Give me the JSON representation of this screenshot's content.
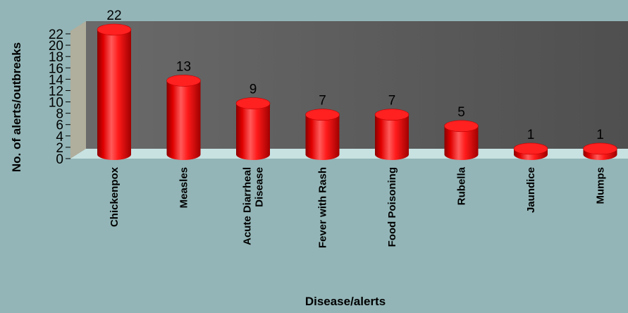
{
  "chart_data": {
    "type": "bar",
    "title": "",
    "xlabel": "Disease/alerts",
    "ylabel": "No. of alerts/outbreaks",
    "categories": [
      "Chickenpox",
      "Measles",
      "Acute Diarrheal Disease",
      "Fever with Rash",
      "Food Poisoning",
      "Rubella",
      "Jaundice",
      "Mumps"
    ],
    "category_lines": [
      [
        "Chickenpox"
      ],
      [
        "Measles"
      ],
      [
        "Acute Diarrheal",
        "Disease"
      ],
      [
        "Fever with Rash"
      ],
      [
        "Food Poisoning"
      ],
      [
        "Rubella"
      ],
      [
        "Jaundice"
      ],
      [
        "Mumps"
      ]
    ],
    "values": [
      22,
      13,
      9,
      7,
      7,
      5,
      1,
      1
    ],
    "ylim": [
      0,
      22
    ],
    "yticks": [
      0,
      2,
      4,
      6,
      8,
      10,
      12,
      14,
      16,
      18,
      20,
      22
    ],
    "style": "3d-cylinder",
    "grid": false,
    "legend": "none",
    "colors": {
      "bar": "#ff0000",
      "bar_dark": "#8a0000",
      "bar_light": "#ff8080",
      "back_wall": "#5a5a5a",
      "side_wall": "#b0ae9c",
      "floor": "#c8e2e2",
      "background": "#93b5b7"
    }
  }
}
